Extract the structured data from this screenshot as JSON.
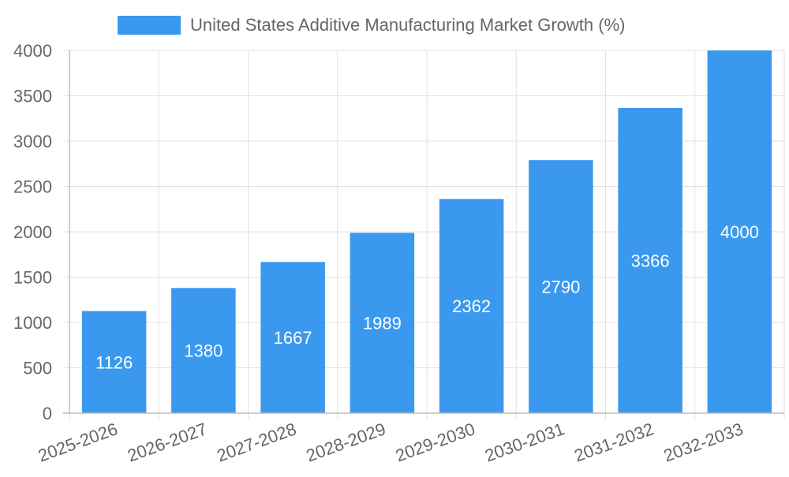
{
  "chart_data": {
    "type": "bar",
    "legend_position": "top-center",
    "grid": true,
    "categories": [
      "2025-2026",
      "2026-2027",
      "2027-2028",
      "2028-2029",
      "2029-2030",
      "2030-2031",
      "2031-2032",
      "2032-2033"
    ],
    "series": [
      {
        "name": "United States Additive Manufacturing Market Growth (%)",
        "color": "#3a99ee",
        "values": [
          1126,
          1380,
          1667,
          1989,
          2362,
          2790,
          3366,
          4000
        ]
      }
    ],
    "data_labels": [
      "1126",
      "1380",
      "1667",
      "1989",
      "2362",
      "2790",
      "3366",
      "4000"
    ],
    "ylim": [
      0,
      4000
    ],
    "yticks": [
      "0",
      "500",
      "1000",
      "1500",
      "2000",
      "2500",
      "3000",
      "3500",
      "4000"
    ],
    "xlabel": "",
    "ylabel": ""
  }
}
